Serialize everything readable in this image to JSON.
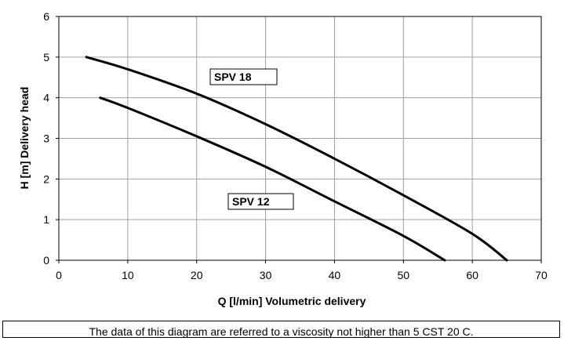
{
  "chart_data": {
    "type": "line",
    "title": "",
    "xlabel": "Q [l/min] Volumetric delivery",
    "ylabel": "H [m] Delivery head",
    "xlim": [
      0,
      70
    ],
    "ylim": [
      0,
      6
    ],
    "x_ticks": [
      "0",
      "10",
      "20",
      "30",
      "40",
      "50",
      "60",
      "70"
    ],
    "y_ticks": [
      "0",
      "1",
      "2",
      "3",
      "4",
      "5",
      "6"
    ],
    "grid": true,
    "series": [
      {
        "name": "SPV 18",
        "x": [
          4,
          10,
          20,
          30,
          40,
          50,
          60,
          65
        ],
        "y": [
          5.0,
          4.7,
          4.1,
          3.35,
          2.5,
          1.6,
          0.65,
          0.0
        ]
      },
      {
        "name": "SPV 12",
        "x": [
          6,
          10,
          20,
          30,
          40,
          50,
          56
        ],
        "y": [
          4.0,
          3.75,
          3.05,
          2.3,
          1.45,
          0.6,
          0.0
        ]
      }
    ]
  },
  "note": "The data of this diagram are referred to a viscosity not higher than 5 CST 20  C."
}
